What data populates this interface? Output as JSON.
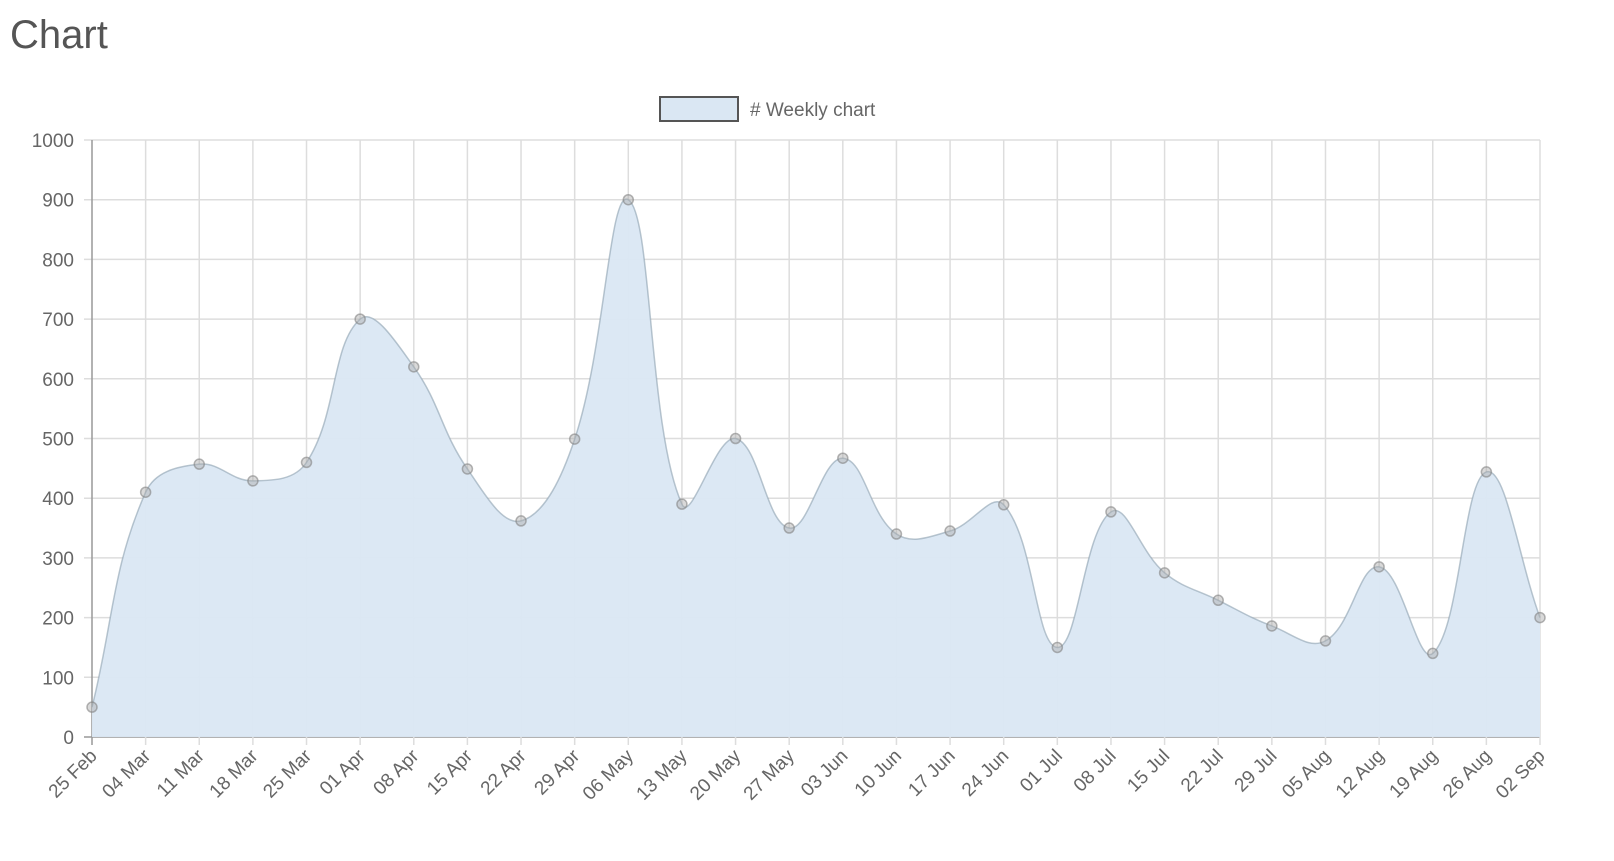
{
  "chart_data": {
    "type": "line",
    "title": "Chart",
    "categories": [
      "25 Feb",
      "04 Mar",
      "11 Mar",
      "18 Mar",
      "25 Mar",
      "01 Apr",
      "08 Apr",
      "15 Apr",
      "22 Apr",
      "29 Apr",
      "06 May",
      "13 May",
      "20 May",
      "27 May",
      "03 Jun",
      "10 Jun",
      "17 Jun",
      "24 Jun",
      "01 Jul",
      "08 Jul",
      "15 Jul",
      "22 Jul",
      "29 Jul",
      "05 Aug",
      "12 Aug",
      "19 Aug",
      "26 Aug",
      "02 Sep"
    ],
    "series": [
      {
        "name": "# Weekly chart",
        "color": "#dae7f3",
        "values": [
          50,
          410,
          457,
          429,
          460,
          700,
          620,
          449,
          362,
          499,
          900,
          390,
          500,
          350,
          467,
          340,
          345,
          389,
          150,
          377,
          275,
          229,
          186,
          161,
          285,
          140,
          444,
          200
        ]
      }
    ],
    "ylim": [
      0,
      1000
    ],
    "yticks": [
      0,
      100,
      200,
      300,
      400,
      500,
      600,
      700,
      800,
      900,
      1000
    ],
    "grid": true,
    "fill": true
  }
}
